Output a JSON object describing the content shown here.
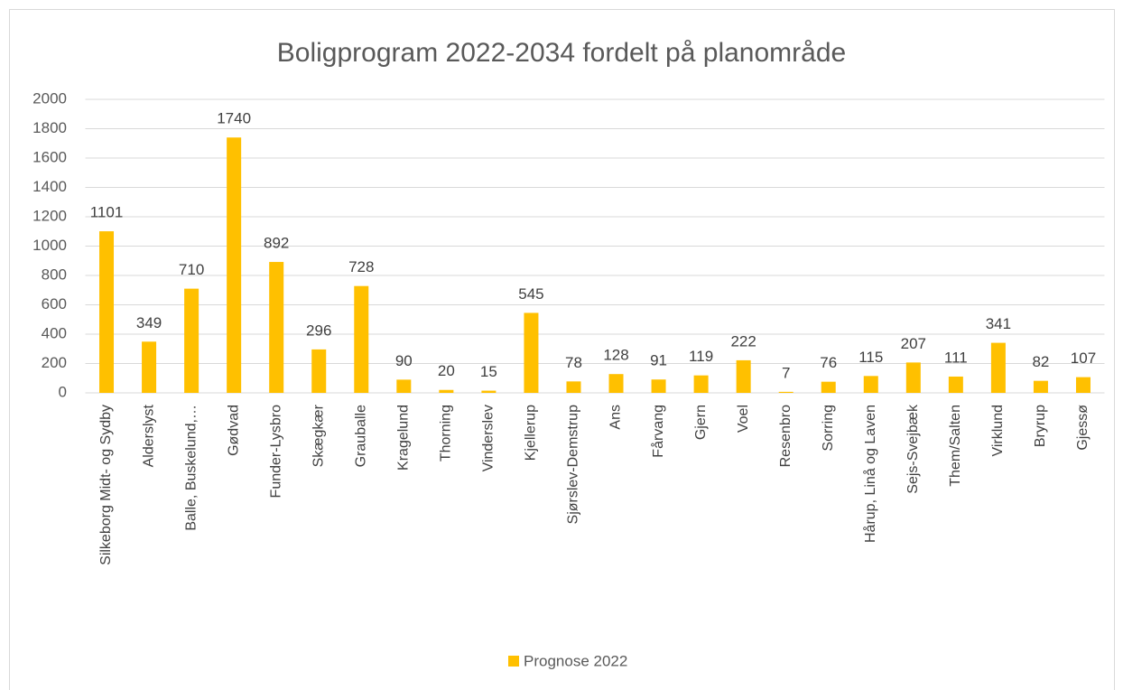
{
  "chart_data": {
    "type": "bar",
    "title": "Boligprogram 2022-2034 fordelt på planområde",
    "categories": [
      "Silkeborg Midt- og Sydby",
      "Alderslyst",
      "Balle, Buskelund,…",
      "Gødvad",
      "Funder-Lysbro",
      "Skægkær",
      "Grauballe",
      "Kragelund",
      "Thorning",
      "Vinderslev",
      "Kjellerup",
      "Sjørslev-Demstrup",
      "Ans",
      "Fårvang",
      "Gjern",
      "Voel",
      "Resenbro",
      "Sorring",
      "Hårup, Linå og Laven",
      "Sejs-Svejbæk",
      "Them/Salten",
      "Virklund",
      "Bryrup",
      "Gjessø"
    ],
    "series": [
      {
        "name": "Prognose 2022",
        "color": "#FFC000",
        "values": [
          1101,
          349,
          710,
          1740,
          892,
          296,
          728,
          90,
          20,
          15,
          545,
          78,
          128,
          91,
          119,
          222,
          7,
          76,
          115,
          207,
          111,
          341,
          82,
          107
        ]
      }
    ],
    "ylim": [
      0,
      2000
    ],
    "yticks": [
      0,
      200,
      400,
      600,
      800,
      1000,
      1200,
      1400,
      1600,
      1800,
      2000
    ],
    "grid": true,
    "legend": "bottom"
  }
}
